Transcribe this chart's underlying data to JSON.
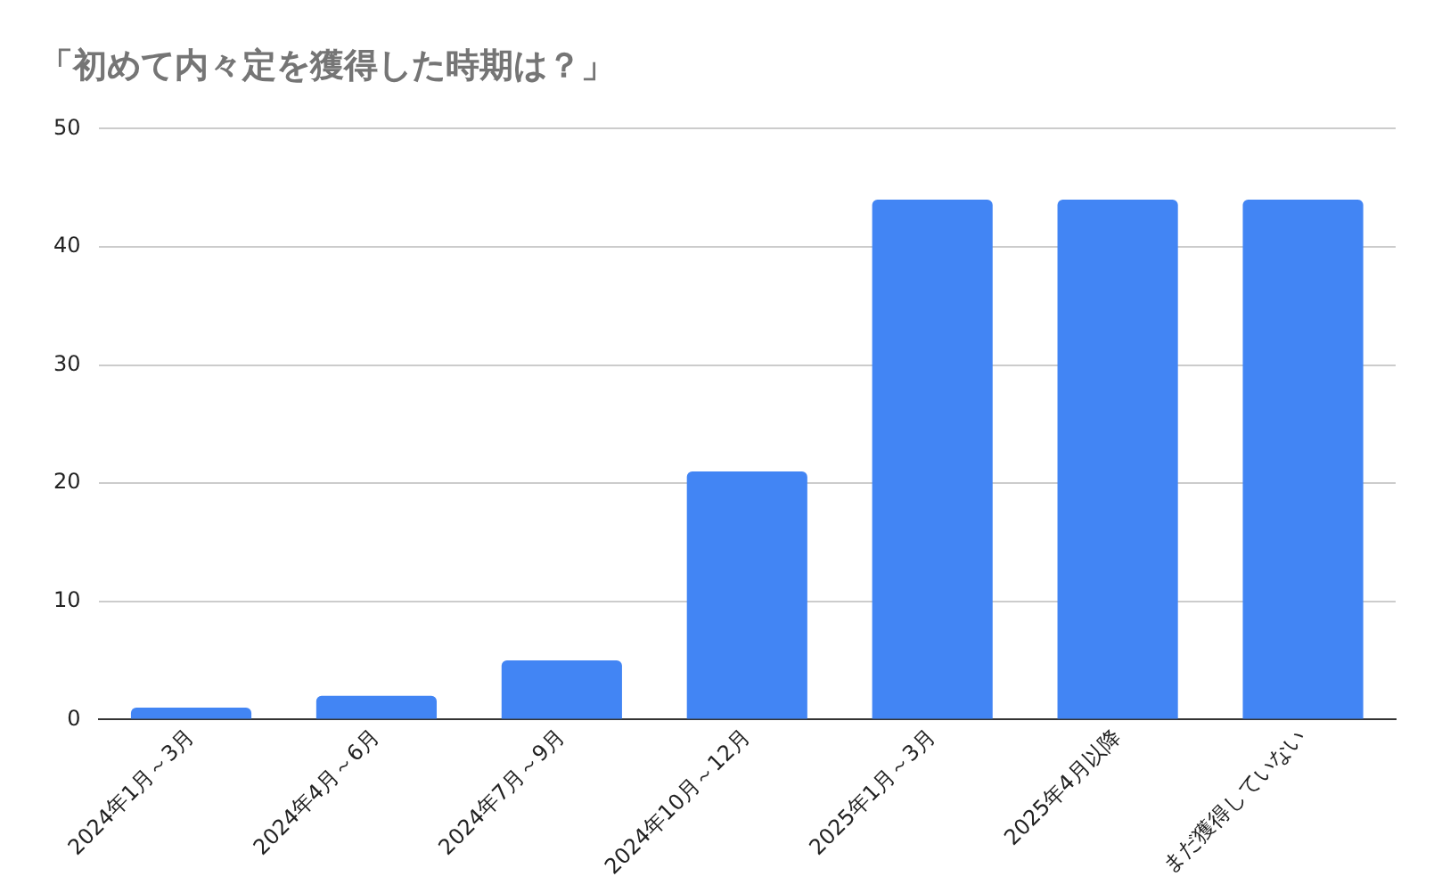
{
  "chart_data": {
    "type": "bar",
    "title": "「初めて内々定を獲得した時期は？」",
    "categories": [
      "2024年1月～3月",
      "2024年4月～6月",
      "2024年7月～9月",
      "2024年10月～12月",
      "2025年1月～3月",
      "2025年4月以降",
      "まだ獲得していない"
    ],
    "values": [
      1,
      2,
      5,
      21,
      44,
      44,
      44
    ],
    "color": "#4285f4",
    "ylim": [
      0,
      50
    ],
    "yticks": [
      0,
      10,
      20,
      30,
      40,
      50
    ],
    "grid": "y",
    "legend": false
  }
}
